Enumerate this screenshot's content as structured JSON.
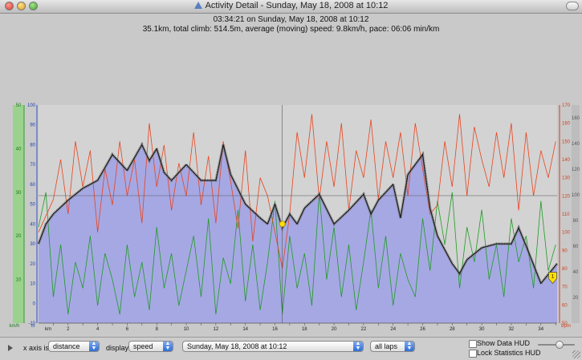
{
  "window": {
    "title": "Activity Detail - Sunday, May 18, 2008 at 10:12"
  },
  "summary": {
    "line1": "03:34:21 on Sunday, May 18, 2008 at 10:12",
    "line2": "35.1km, total climb: 514.5m, average (moving) speed: 9.8km/h, pace: 06:06 min/km"
  },
  "controls": {
    "x_axis_label": "x axis is:",
    "x_axis_value": "distance",
    "display_label": "display:",
    "display_value": "speed",
    "activity_value": "Sunday, May 18, 2008 at 10:12",
    "laps_value": "all laps",
    "show_data_hud": "Show Data HUD",
    "lock_statistics_hud": "Lock Statistics HUD"
  },
  "colors": {
    "background": "#c9c9c9",
    "altitude_fill": "#a6a8e4",
    "speed_line": "#1c1c1c",
    "heartrate_line": "#e8431c",
    "cadence_line": "#1f9a24",
    "marker": "#ffe000"
  },
  "chart_data": {
    "type": "area",
    "x_axis": {
      "label": "km",
      "range": [
        0,
        35.1
      ],
      "ticks": [
        "1",
        "2",
        "3",
        "4",
        "5",
        "6",
        "7",
        "8",
        "9",
        "10",
        "11",
        "12",
        "13",
        "14",
        "15",
        "16",
        "17",
        "18",
        "19",
        "20",
        "21",
        "22",
        "23",
        "24",
        "25",
        "26",
        "27",
        "28",
        "29",
        "30",
        "31",
        "32",
        "33",
        "34",
        "35"
      ]
    },
    "left_axis_green": {
      "unit": "km/h",
      "range": [
        0,
        50
      ],
      "ticks": [
        "50",
        "40",
        "30",
        "20",
        "10"
      ]
    },
    "left_axis_blue": {
      "unit": "m",
      "range": [
        -10,
        100
      ],
      "ticks": [
        "100",
        "90",
        "80",
        "70",
        "60",
        "50",
        "40",
        "30",
        "20",
        "10",
        "0",
        "-10"
      ]
    },
    "right_axis_red": {
      "unit": "bpm",
      "range": [
        50,
        170
      ],
      "ticks": [
        "170",
        "160",
        "150",
        "140",
        "130",
        "120",
        "110",
        "100",
        "90",
        "80",
        "70",
        "60",
        "50"
      ]
    },
    "right_axis_gray": {
      "range": [
        0,
        170
      ],
      "ticks": [
        "160",
        "140",
        "120",
        "100",
        "80",
        "60",
        "40",
        "20"
      ]
    },
    "series": [
      {
        "name": "altitude",
        "type": "area",
        "x": [
          0,
          0.5,
          1,
          2,
          3,
          4,
          5,
          6,
          7,
          7.5,
          8,
          8.5,
          9,
          10,
          11,
          12,
          12.5,
          13,
          14,
          15,
          15.5,
          16,
          16.5,
          17,
          17.5,
          18,
          19,
          20,
          21,
          22,
          22.5,
          23,
          24,
          24.5,
          25,
          26,
          26.5,
          27,
          28,
          28.5,
          29,
          30,
          31,
          32,
          32.5,
          33,
          34,
          35.1
        ],
        "y": [
          30,
          40,
          45,
          52,
          58,
          62,
          75,
          67,
          80,
          72,
          78,
          66,
          62,
          70,
          62,
          62,
          80,
          65,
          50,
          43,
          40,
          50,
          38,
          45,
          40,
          48,
          55,
          40,
          47,
          55,
          45,
          52,
          60,
          43,
          65,
          75,
          48,
          34,
          20,
          15,
          22,
          28,
          30,
          30,
          38,
          29,
          10,
          20
        ]
      },
      {
        "name": "speed",
        "type": "line",
        "x": [
          0,
          0.5,
          1,
          2,
          3,
          4,
          5,
          6,
          7,
          7.5,
          8,
          8.5,
          9,
          10,
          11,
          12,
          12.5,
          13,
          14,
          15,
          15.5,
          16,
          16.5,
          17,
          17.5,
          18,
          19,
          20,
          21,
          22,
          22.5,
          23,
          24,
          24.5,
          25,
          26,
          26.5,
          27,
          28,
          28.5,
          29,
          30,
          31,
          32,
          32.5,
          33,
          34,
          35.1
        ],
        "y": [
          30,
          40,
          45,
          52,
          58,
          62,
          75,
          67,
          80,
          72,
          78,
          66,
          62,
          70,
          62,
          62,
          80,
          65,
          50,
          43,
          40,
          50,
          38,
          45,
          40,
          48,
          55,
          40,
          47,
          55,
          45,
          52,
          60,
          43,
          65,
          75,
          48,
          34,
          20,
          15,
          22,
          28,
          30,
          30,
          38,
          29,
          10,
          20
        ]
      },
      {
        "name": "heart rate",
        "type": "line",
        "x": [
          0,
          1,
          1.5,
          2,
          2.5,
          3,
          3.5,
          4,
          4.5,
          5,
          5.5,
          6,
          6.5,
          7,
          7.5,
          8,
          8.5,
          9,
          9.5,
          10,
          10.5,
          11,
          11.5,
          12,
          12.5,
          13,
          13.5,
          14,
          14.5,
          15,
          15.5,
          16,
          16.5,
          17,
          17.5,
          18,
          18.5,
          19,
          19.5,
          20,
          20.5,
          21,
          21.5,
          22,
          22.5,
          23,
          23.5,
          24,
          24.5,
          25,
          25.5,
          26,
          26.5,
          27,
          27.5,
          28,
          28.5,
          29,
          29.5,
          30,
          30.5,
          31,
          31.5,
          32,
          32.5,
          33,
          33.5,
          34,
          34.5,
          35
        ],
        "y": [
          100,
          118,
          140,
          110,
          150,
          125,
          145,
          100,
          135,
          115,
          150,
          120,
          140,
          105,
          160,
          125,
          148,
          112,
          138,
          120,
          155,
          115,
          142,
          105,
          150,
          128,
          102,
          145,
          95,
          130,
          120,
          100,
          80,
          110,
          155,
          130,
          165,
          118,
          150,
          125,
          160,
          112,
          145,
          130,
          162,
          118,
          150,
          130,
          155,
          120,
          160,
          135,
          110,
          115,
          150,
          125,
          165,
          120,
          158,
          140,
          125,
          155,
          130,
          160,
          112,
          155,
          120,
          145,
          130,
          150
        ]
      },
      {
        "name": "cadence",
        "type": "line",
        "x": [
          0,
          0.5,
          1,
          1.5,
          2,
          2.5,
          3,
          3.5,
          4,
          4.5,
          5,
          5.5,
          6,
          6.5,
          7,
          7.5,
          8,
          8.5,
          9,
          9.5,
          10,
          10.5,
          11,
          11.5,
          12,
          12.5,
          13,
          13.5,
          14,
          14.5,
          15,
          15.5,
          16,
          16.5,
          17,
          17.5,
          18,
          18.5,
          19,
          19.5,
          20,
          20.5,
          21,
          21.5,
          22,
          22.5,
          23,
          23.5,
          24,
          24.5,
          25,
          25.5,
          26,
          26.5,
          27,
          27.5,
          28,
          28.5,
          29,
          29.5,
          30,
          30.5,
          31,
          31.5,
          32,
          32.5,
          33,
          33.5,
          34,
          34.5,
          35
        ],
        "y": [
          22,
          30,
          6,
          18,
          2,
          14,
          8,
          20,
          4,
          16,
          10,
          2,
          18,
          6,
          14,
          3,
          22,
          8,
          16,
          4,
          12,
          20,
          6,
          24,
          2,
          15,
          9,
          26,
          5,
          18,
          3,
          14,
          28,
          2,
          20,
          8,
          16,
          4,
          30,
          10,
          22,
          6,
          18,
          3,
          14,
          26,
          8,
          20,
          4,
          16,
          10,
          6,
          24,
          12,
          28,
          18,
          30,
          8,
          22,
          14,
          26,
          10,
          18,
          6,
          24,
          14,
          20,
          8,
          28,
          12,
          18
        ]
      }
    ],
    "markers": [
      {
        "name": "yellow point marker",
        "x": 16.5,
        "y": 40
      },
      {
        "name": "lap marker",
        "label": "1",
        "x": 34.8,
        "y": 10
      }
    ]
  }
}
